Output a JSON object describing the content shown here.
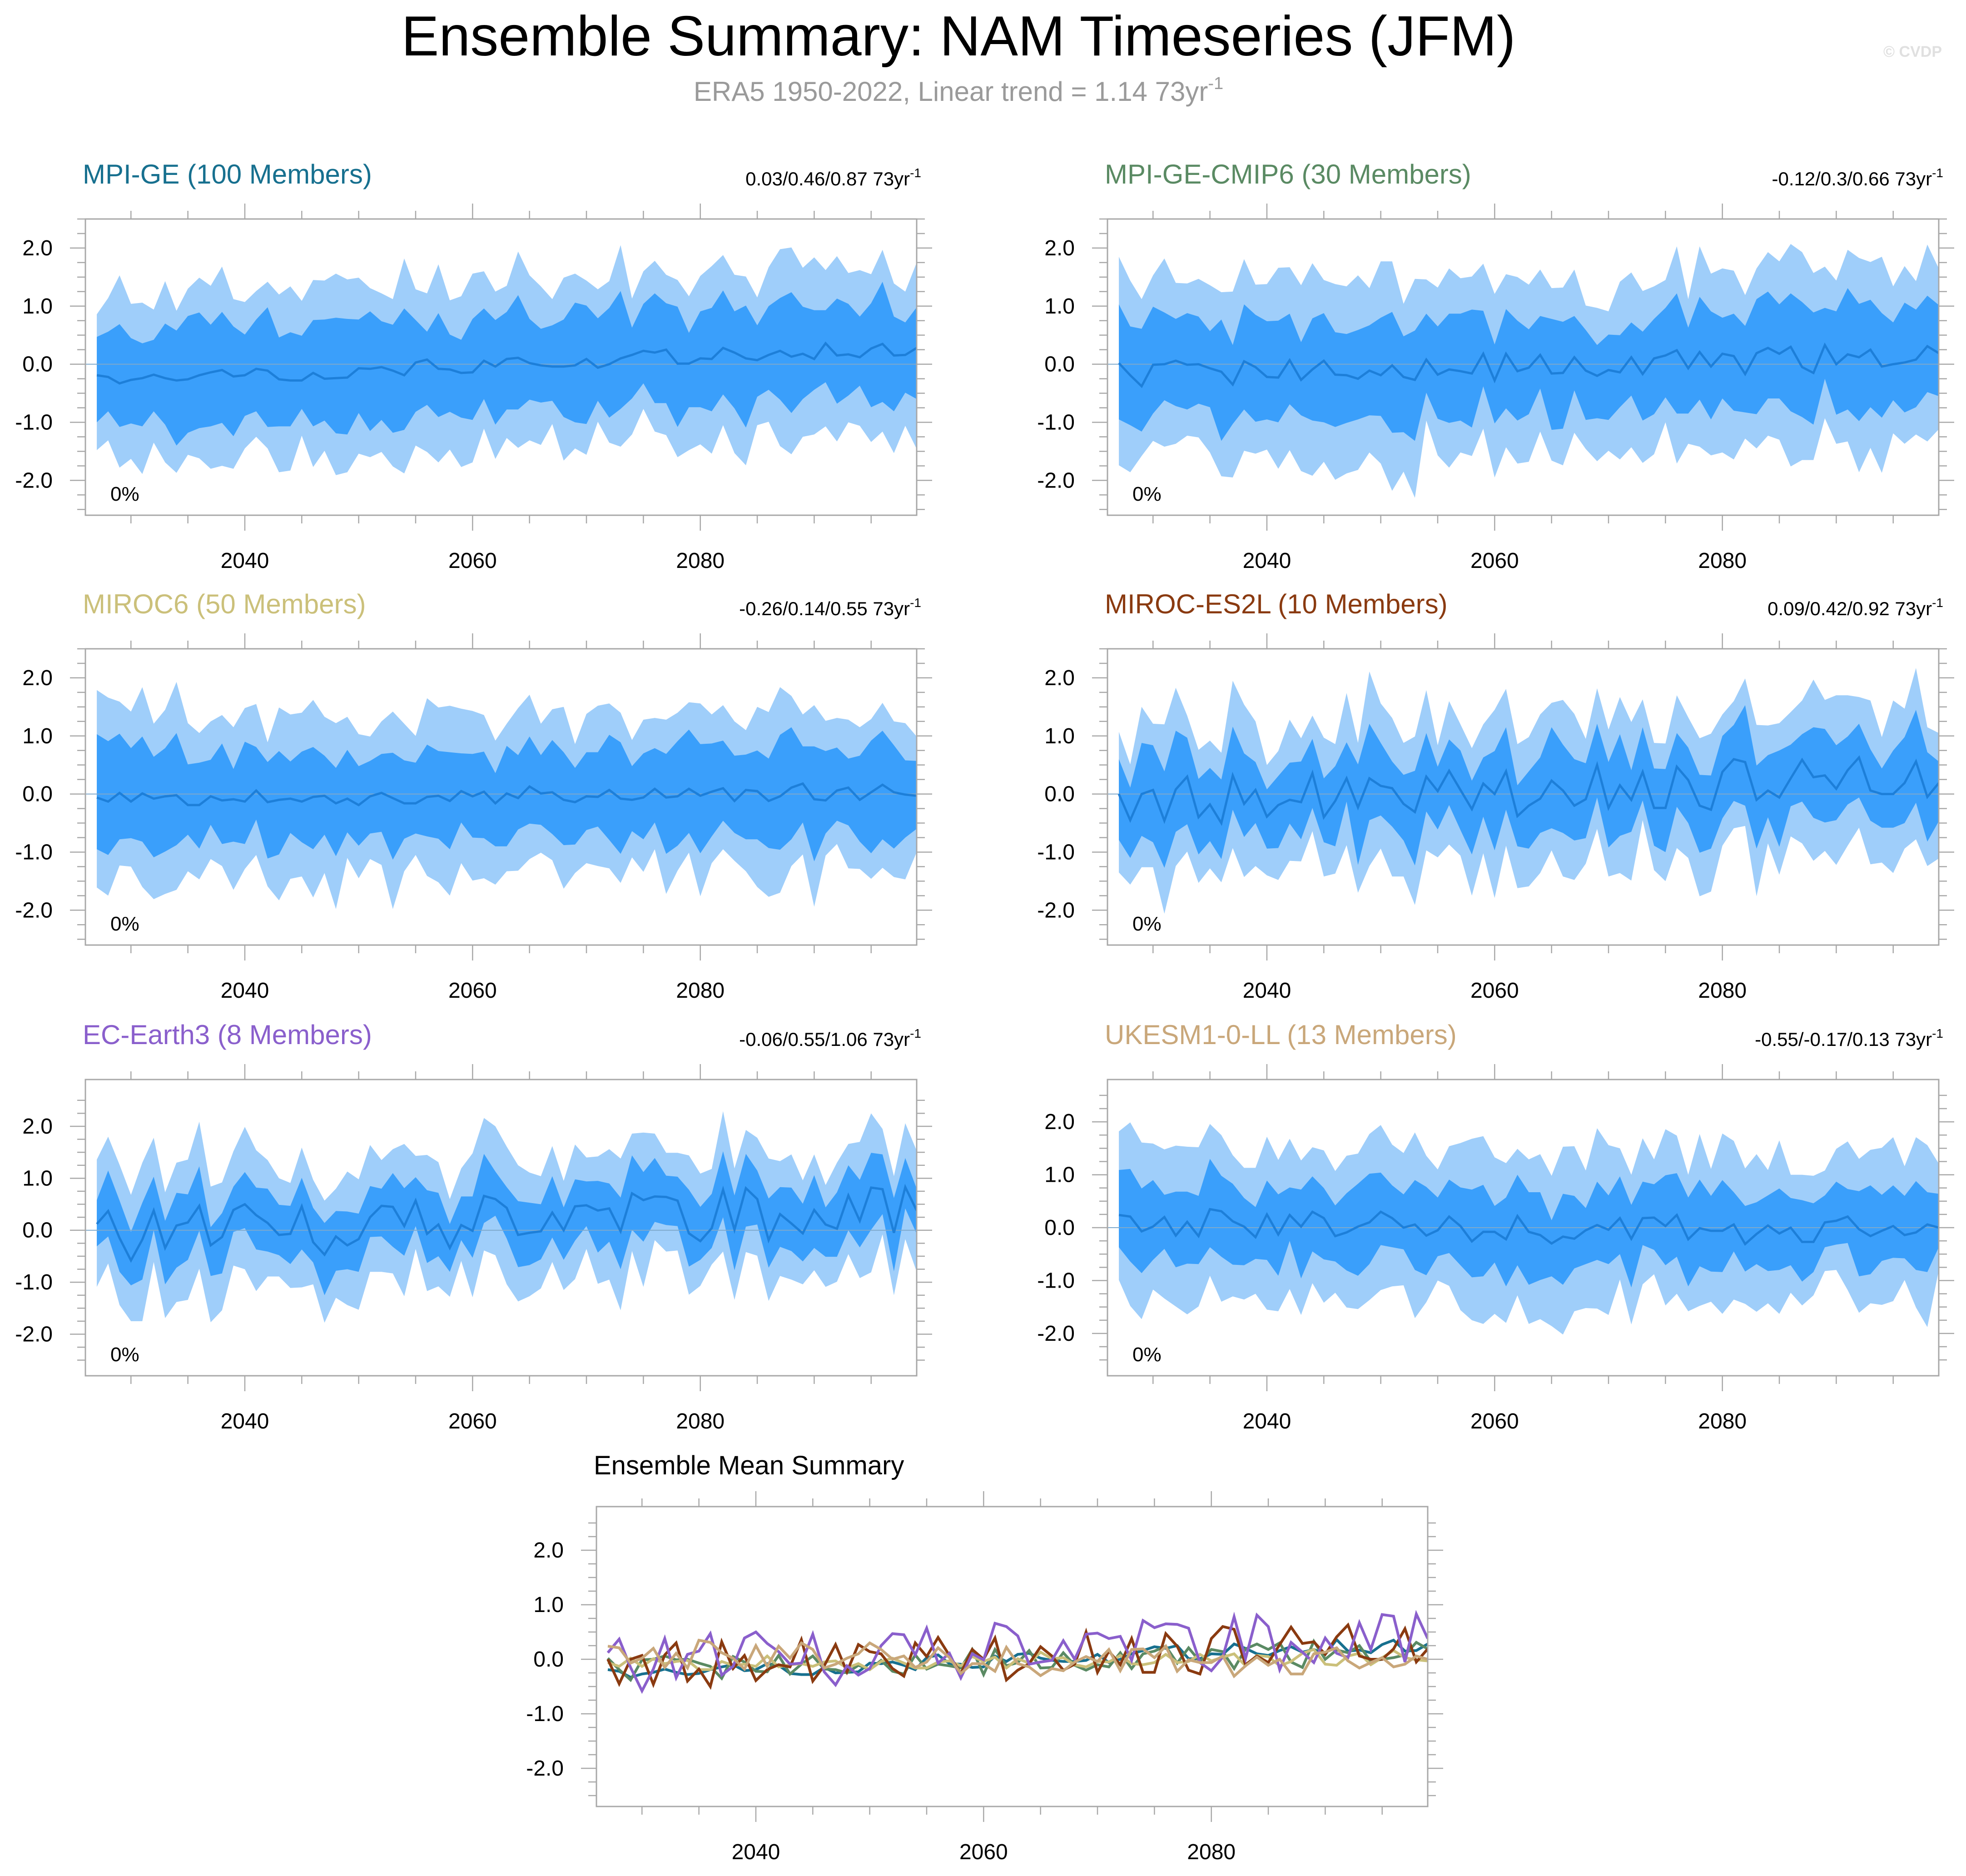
{
  "title": "Ensemble Summary: NAM Timeseries (JFM)",
  "subtitle": "ERA5 1950-2022, Linear trend = 1.14 73yr",
  "subtitle_sup": "-1",
  "watermark": "© CVDP",
  "colors": {
    "band_outer": "#9fcefa",
    "band_inner": "#3a9ffb",
    "mean_line": "#1d7fd9",
    "zero_line": "#7ea9cc",
    "frame": "#a8a8a8"
  },
  "chart_data": [
    {
      "type": "area",
      "id": "mpi-ge",
      "title": "MPI-GE (100 Members)",
      "title_color": "#17708f",
      "trend": "0.03/0.46/0.87 73yr",
      "trend_sup": "-1",
      "percent_label": "0%",
      "xlim": [
        2026,
        2099
      ],
      "ylim": [
        -2.6,
        2.5
      ],
      "xticks": [
        2040,
        2060,
        2080
      ],
      "yticks": [
        2.0,
        1.0,
        0.0,
        -1.0,
        -2.0
      ],
      "ytick_labels": [
        "2.0",
        "1.0",
        "0.0",
        "-1.0",
        "-2.0"
      ],
      "seed": 11,
      "base_amp": 0.85,
      "outer_amp": 0.65,
      "mean_amp": 0.14,
      "trend_start": -0.3,
      "trend_end": 0.3
    },
    {
      "type": "area",
      "id": "mpi-ge-cmip6",
      "title": "MPI-GE-CMIP6 (30 Members)",
      "title_color": "#5a8a63",
      "trend": "-0.12/0.3/0.66 73yr",
      "trend_sup": "-1",
      "percent_label": "0%",
      "xlim": [
        2026,
        2099
      ],
      "ylim": [
        -2.6,
        2.5
      ],
      "xticks": [
        2040,
        2060,
        2080
      ],
      "yticks": [
        2.0,
        1.0,
        0.0,
        -1.0,
        -2.0
      ],
      "ytick_labels": [
        "2.0",
        "1.0",
        "0.0",
        "-1.0",
        "-2.0"
      ],
      "seed": 23,
      "base_amp": 0.85,
      "outer_amp": 0.75,
      "mean_amp": 0.25,
      "trend_start": -0.2,
      "trend_end": 0.15
    },
    {
      "type": "area",
      "id": "miroc6",
      "title": "MIROC6 (50 Members)",
      "title_color": "#cbc07a",
      "trend": "-0.26/0.14/0.55 73yr",
      "trend_sup": "-1",
      "percent_label": "0%",
      "xlim": [
        2026,
        2099
      ],
      "ylim": [
        -2.6,
        2.5
      ],
      "xticks": [
        2040,
        2060,
        2080
      ],
      "yticks": [
        2.0,
        1.0,
        0.0,
        -1.0,
        -2.0
      ],
      "ytick_labels": [
        "2.0",
        "1.0",
        "0.0",
        "-1.0",
        "-2.0"
      ],
      "seed": 37,
      "base_amp": 0.8,
      "outer_amp": 0.65,
      "mean_amp": 0.15,
      "trend_start": -0.1,
      "trend_end": 0.05
    },
    {
      "type": "area",
      "id": "miroc-es2l",
      "title": "MIROC-ES2L (10 Members)",
      "title_color": "#8a3a10",
      "trend": "0.09/0.42/0.92 73yr",
      "trend_sup": "-1",
      "percent_label": "0%",
      "xlim": [
        2026,
        2099
      ],
      "ylim": [
        -2.6,
        2.5
      ],
      "xticks": [
        2040,
        2060,
        2080
      ],
      "yticks": [
        2.0,
        1.0,
        0.0,
        -1.0,
        -2.0
      ],
      "ytick_labels": [
        "2.0",
        "1.0",
        "0.0",
        "-1.0",
        "-2.0"
      ],
      "seed": 49,
      "base_amp": 0.7,
      "outer_amp": 0.65,
      "mean_amp": 0.45,
      "trend_start": -0.15,
      "trend_end": 0.3
    },
    {
      "type": "area",
      "id": "ec-earth3",
      "title": "EC-Earth3 (8 Members)",
      "title_color": "#8a5fcc",
      "trend": "-0.06/0.55/1.06 73yr",
      "trend_sup": "-1",
      "percent_label": "0%",
      "xlim": [
        2026,
        2099
      ],
      "ylim": [
        -2.8,
        2.9
      ],
      "xticks": [
        2040,
        2060,
        2080
      ],
      "yticks": [
        2.0,
        1.0,
        0.0,
        -1.0,
        -2.0
      ],
      "ytick_labels": [
        "2.0",
        "1.0",
        "0.0",
        "-1.0",
        "-2.0"
      ],
      "seed": 61,
      "base_amp": 0.6,
      "outer_amp": 0.65,
      "mean_amp": 0.55,
      "trend_start": -0.1,
      "trend_end": 0.35
    },
    {
      "type": "area",
      "id": "ukesm1-0-ll",
      "title": "UKESM1-0-LL (13 Members)",
      "title_color": "#c9a77a",
      "trend": "-0.55/-0.17/0.13 73yr",
      "trend_sup": "-1",
      "percent_label": "0%",
      "xlim": [
        2026,
        2099
      ],
      "ylim": [
        -2.8,
        2.8
      ],
      "xticks": [
        2040,
        2060,
        2080
      ],
      "yticks": [
        2.0,
        1.0,
        0.0,
        -1.0,
        -2.0
      ],
      "ytick_labels": [
        "2.0",
        "1.0",
        "0.0",
        "-1.0",
        "-2.0"
      ],
      "seed": 73,
      "base_amp": 0.7,
      "outer_amp": 0.75,
      "mean_amp": 0.3,
      "trend_start": 0.1,
      "trend_end": -0.1
    },
    {
      "type": "line",
      "id": "ensemble-mean",
      "title": "Ensemble Mean Summary",
      "title_color": "#000000",
      "xlim": [
        2026,
        2099
      ],
      "ylim": [
        -2.7,
        2.8
      ],
      "xticks": [
        2040,
        2060,
        2080
      ],
      "yticks": [
        2.0,
        1.0,
        0.0,
        -1.0,
        -2.0
      ],
      "ytick_labels": [
        "2.0",
        "1.0",
        "0.0",
        "-1.0",
        "-2.0"
      ],
      "series": [
        {
          "name": "MPI-GE",
          "color": "#17708f",
          "ref": "mpi-ge"
        },
        {
          "name": "MPI-GE-CMIP6",
          "color": "#5a8a63",
          "ref": "mpi-ge-cmip6"
        },
        {
          "name": "MIROC6",
          "color": "#cbc07a",
          "ref": "miroc6"
        },
        {
          "name": "MIROC-ES2L",
          "color": "#8a3a10",
          "ref": "miroc-es2l"
        },
        {
          "name": "EC-Earth3",
          "color": "#8a5fcc",
          "ref": "ec-earth3"
        },
        {
          "name": "UKESM1-0-LL",
          "color": "#c9a77a",
          "ref": "ukesm1-0-ll"
        }
      ]
    }
  ]
}
